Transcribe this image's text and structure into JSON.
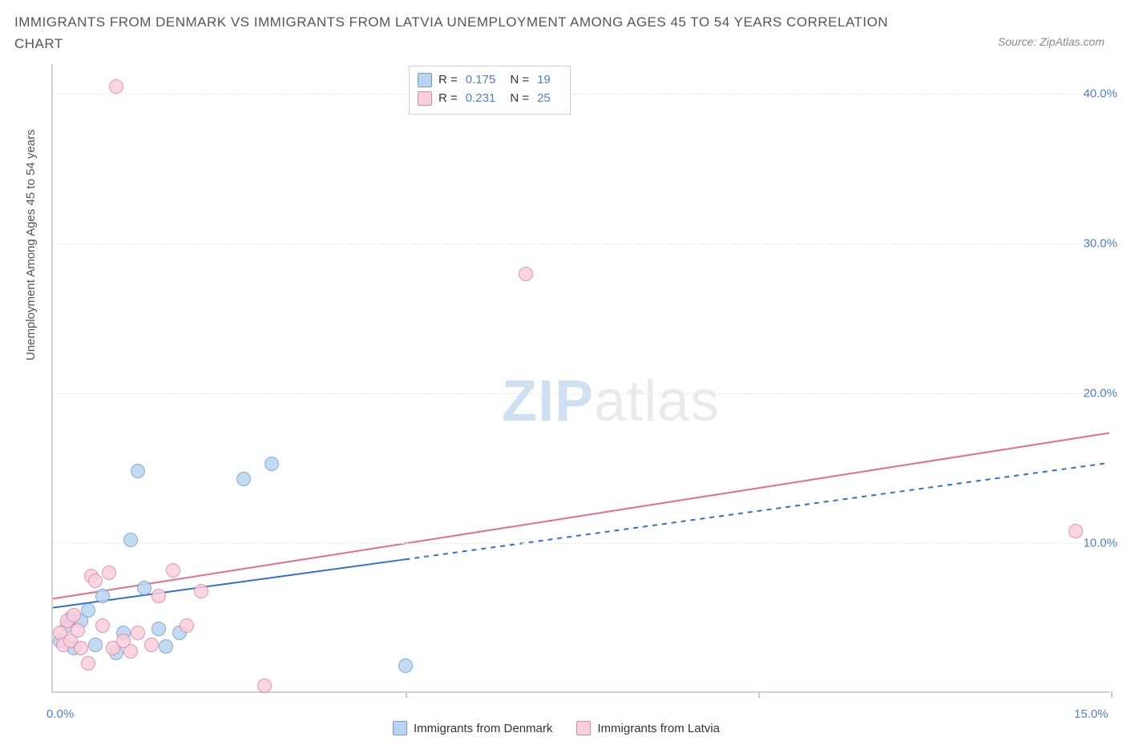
{
  "title": "IMMIGRANTS FROM DENMARK VS IMMIGRANTS FROM LATVIA UNEMPLOYMENT AMONG AGES 45 TO 54 YEARS CORRELATION CHART",
  "source": "Source: ZipAtlas.com",
  "watermark_a": "ZIP",
  "watermark_b": "atlas",
  "y_axis_label": "Unemployment Among Ages 45 to 54 years",
  "chart": {
    "type": "scatter",
    "xlim": [
      0,
      15
    ],
    "ylim": [
      0,
      42
    ],
    "x_ticks": [
      0,
      5,
      10,
      15
    ],
    "y_ticks": [
      10,
      20,
      30,
      40
    ],
    "x_tick_labels": {
      "0": "0.0%",
      "15": "15.0%"
    },
    "y_tick_labels": {
      "10": "10.0%",
      "20": "20.0%",
      "30": "30.0%",
      "40": "40.0%"
    },
    "grid_color": "#e8e8e8",
    "axis_color": "#d0d0d0",
    "background_color": "#ffffff",
    "point_radius": 9,
    "series": [
      {
        "name": "Immigrants from Denmark",
        "fill": "#b9d4f1",
        "stroke": "#6f9bd8",
        "r_value": "0.175",
        "n_value": "19",
        "trend": {
          "x1": 0,
          "y1": 5.6,
          "x2_solid": 5.0,
          "x2": 15.0,
          "y2": 15.3,
          "color": "#2e6fd6",
          "width": 2
        },
        "points": [
          [
            0.1,
            3.5
          ],
          [
            0.2,
            4.5
          ],
          [
            0.25,
            5.0
          ],
          [
            0.3,
            3.0
          ],
          [
            0.4,
            4.8
          ],
          [
            0.5,
            5.5
          ],
          [
            0.6,
            3.2
          ],
          [
            0.7,
            6.5
          ],
          [
            0.9,
            2.7
          ],
          [
            1.0,
            4.0
          ],
          [
            1.1,
            10.2
          ],
          [
            1.2,
            14.8
          ],
          [
            1.3,
            7.0
          ],
          [
            1.5,
            4.3
          ],
          [
            1.8,
            4.0
          ],
          [
            2.7,
            14.3
          ],
          [
            3.1,
            15.3
          ],
          [
            5.0,
            1.8
          ],
          [
            1.6,
            3.1
          ]
        ]
      },
      {
        "name": "Immigrants from Latvia",
        "fill": "#f8cfdc",
        "stroke": "#e3829f",
        "r_value": "0.231",
        "n_value": "25",
        "trend": {
          "x1": 0,
          "y1": 6.2,
          "x2_solid": 15.0,
          "x2": 15.0,
          "y2": 17.3,
          "color": "#e86a8e",
          "width": 2
        },
        "points": [
          [
            0.1,
            4.0
          ],
          [
            0.15,
            3.2
          ],
          [
            0.2,
            4.8
          ],
          [
            0.25,
            3.5
          ],
          [
            0.3,
            5.2
          ],
          [
            0.35,
            4.2
          ],
          [
            0.4,
            3.0
          ],
          [
            0.5,
            2.0
          ],
          [
            0.55,
            7.8
          ],
          [
            0.6,
            7.5
          ],
          [
            0.7,
            4.5
          ],
          [
            0.8,
            8.0
          ],
          [
            0.85,
            3.0
          ],
          [
            0.9,
            40.5
          ],
          [
            1.1,
            2.8
          ],
          [
            1.2,
            4.0
          ],
          [
            1.4,
            3.2
          ],
          [
            1.5,
            6.5
          ],
          [
            1.7,
            8.2
          ],
          [
            1.9,
            4.5
          ],
          [
            2.1,
            6.8
          ],
          [
            3.0,
            0.5
          ],
          [
            6.7,
            28.0
          ],
          [
            14.5,
            10.8
          ],
          [
            1.0,
            3.5
          ]
        ]
      }
    ]
  },
  "stats_labels": {
    "r": "R =",
    "n": "N ="
  },
  "legend": [
    {
      "label": "Immigrants from Denmark",
      "fill": "#b9d4f1",
      "stroke": "#6f9bd8"
    },
    {
      "label": "Immigrants from Latvia",
      "fill": "#f8cfdc",
      "stroke": "#e3829f"
    }
  ]
}
